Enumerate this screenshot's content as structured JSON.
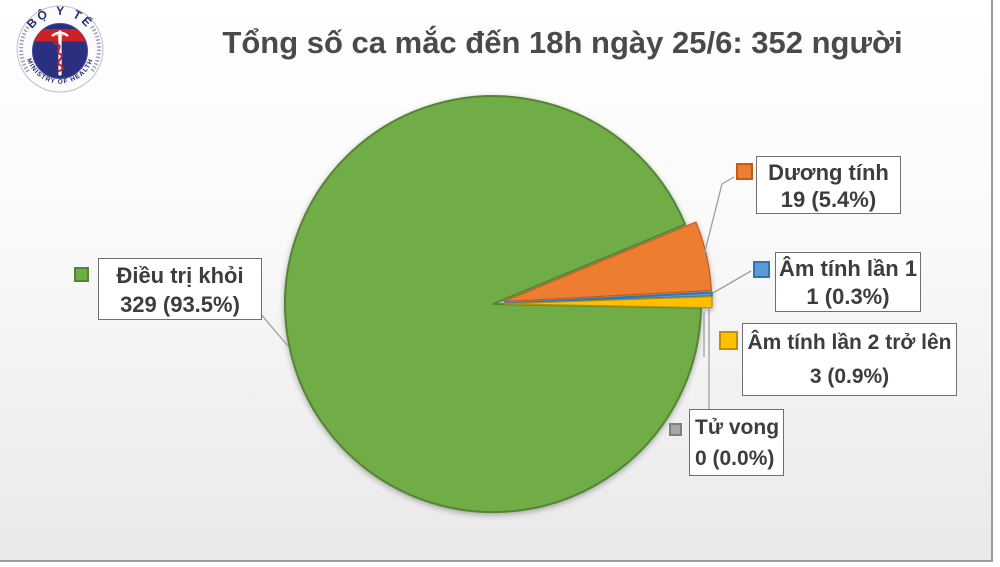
{
  "title": "Tổng số ca mắc đến 18h ngày 25/6: 352 người",
  "logo": {
    "top_text": "BỘ Y TẾ",
    "bottom_text": "MINISTRY OF HEALTH",
    "star": "★"
  },
  "callouts": [
    {
      "id": "dieu-tri-khoi",
      "line1": "Điều trị khỏi",
      "line2": "329 (93.5%)"
    },
    {
      "id": "duong-tinh",
      "line1": "Dương tính",
      "line2": "19 (5.4%)"
    },
    {
      "id": "am-tinh-lan-1",
      "line1": "Âm tính lần 1",
      "line2": "1 (0.3%)"
    },
    {
      "id": "am-tinh-lan-2",
      "line1": "Âm tính lần 2 trở lên",
      "line2": "3 (0.9%)"
    },
    {
      "id": "tu-vong",
      "line1": "Tử vong",
      "line2": "0 (0.0%)"
    }
  ],
  "chart_data": {
    "type": "pie",
    "title": "Tổng số ca mắc đến 18h ngày 25/6: 352 người",
    "total": 352,
    "unit": "người",
    "start_angle_deg": 1.05,
    "legend_position": "callout labels with leader lines around pie",
    "slices": [
      {
        "label": "Điều trị khỏi",
        "value": 329,
        "pct": 93.5,
        "color": "#70AD47",
        "border": "#568435",
        "exploded": false
      },
      {
        "label": "Dương tính",
        "value": 19,
        "pct": 5.4,
        "color": "#ED7D31",
        "border": "#C55A11",
        "exploded": true
      },
      {
        "label": "Âm tính lần 1",
        "value": 1,
        "pct": 0.3,
        "color": "#5B9BD5",
        "border": "#2E75B6",
        "exploded": true
      },
      {
        "label": "Âm tính lần 2 trở lên",
        "value": 3,
        "pct": 0.9,
        "color": "#FFC000",
        "border": "#BF9000",
        "exploded": true
      },
      {
        "label": "Tử vong",
        "value": 0,
        "pct": 0.0,
        "color": "#A6A6A6",
        "border": "#7F7F7F",
        "exploded": false
      }
    ]
  }
}
